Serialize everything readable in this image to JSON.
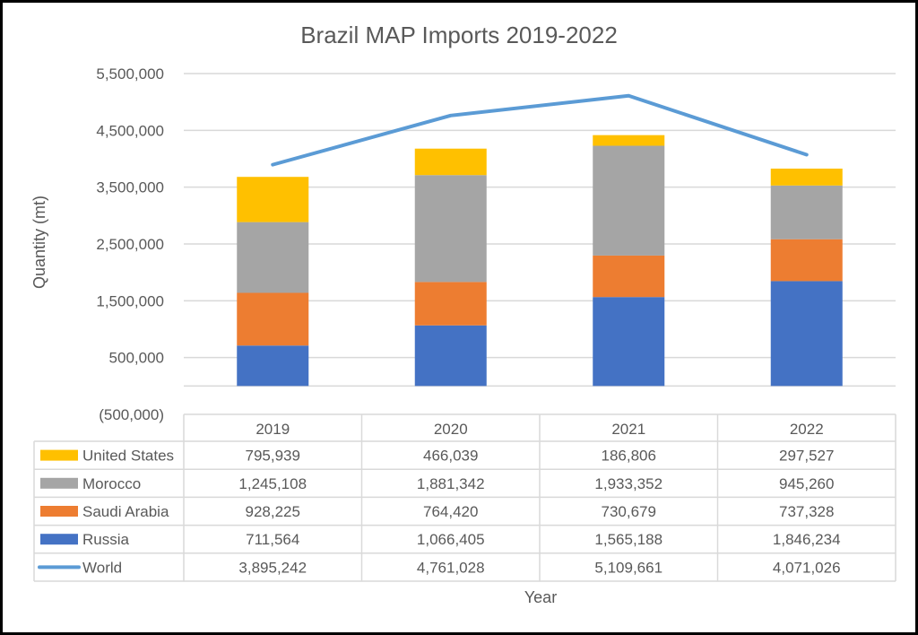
{
  "chart_data": {
    "type": "bar",
    "stacked": true,
    "title": "Brazil MAP Imports 2019-2022",
    "xlabel": "Year",
    "ylabel": "Quantity (mt)",
    "ylim": [
      -500000,
      5500000
    ],
    "yticks": [
      -500000,
      500000,
      1500000,
      2500000,
      3500000,
      4500000,
      5500000
    ],
    "ytick_labels": [
      "(500,000)",
      "500,000",
      "1,500,000",
      "2,500,000",
      "3,500,000",
      "4,500,000",
      "5,500,000"
    ],
    "grid": true,
    "legend": "data-table",
    "categories": [
      "2019",
      "2020",
      "2021",
      "2022"
    ],
    "series": [
      {
        "name": "Russia",
        "kind": "bar",
        "color": "#4472C4",
        "values": [
          711564,
          1066405,
          1565188,
          1846234
        ],
        "labels": [
          "711,564",
          "1,066,405",
          "1,565,188",
          "1,846,234"
        ]
      },
      {
        "name": "Saudi Arabia",
        "kind": "bar",
        "color": "#ED7D31",
        "values": [
          928225,
          764420,
          730679,
          737328
        ],
        "labels": [
          "928,225",
          "764,420",
          "730,679",
          "737,328"
        ]
      },
      {
        "name": "Morocco",
        "kind": "bar",
        "color": "#A5A5A5",
        "values": [
          1245108,
          1881342,
          1933352,
          945260
        ],
        "labels": [
          "1,245,108",
          "1,881,342",
          "1,933,352",
          "945,260"
        ]
      },
      {
        "name": "United States",
        "kind": "bar",
        "color": "#FFC000",
        "values": [
          795939,
          466039,
          186806,
          297527
        ],
        "labels": [
          "795,939",
          "466,039",
          "186,806",
          "297,527"
        ]
      },
      {
        "name": "World",
        "kind": "line",
        "color": "#5B9BD5",
        "values": [
          3895242,
          4761028,
          5109661,
          4071026
        ],
        "labels": [
          "3,895,242",
          "4,761,028",
          "5,109,661",
          "4,071,026"
        ]
      }
    ],
    "table_row_order": [
      "United States",
      "Morocco",
      "Saudi Arabia",
      "Russia",
      "World"
    ]
  }
}
